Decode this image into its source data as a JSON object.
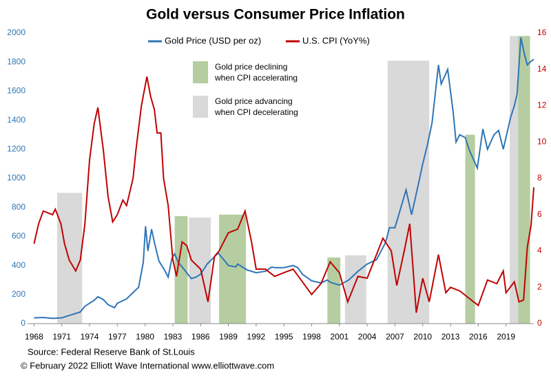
{
  "chart_data": {
    "type": "line",
    "title": "Gold versus Consumer Price Inflation",
    "xlim": [
      1967.3,
      2022
    ],
    "xticks": [
      1968,
      1971,
      1974,
      1977,
      1980,
      1983,
      1986,
      1989,
      1992,
      1995,
      1998,
      2001,
      2004,
      2007,
      2010,
      2013,
      2016,
      2019
    ],
    "ylim": [
      0,
      2000
    ],
    "yticks": [
      0,
      200,
      400,
      600,
      800,
      1000,
      1200,
      1400,
      1600,
      1800,
      2000
    ],
    "y2lim": [
      0,
      16
    ],
    "y2ticks": [
      0,
      2,
      4,
      6,
      8,
      10,
      12,
      14,
      16
    ],
    "bands": [
      {
        "name": [
          "Gold price declining",
          "when CPI accelerating"
        ],
        "color": "#b5cda0",
        "periods": [
          [
            1983.2,
            1984.6,
            740
          ],
          [
            1988.0,
            1990.9,
            750
          ],
          [
            1999.7,
            2001.1,
            455
          ],
          [
            2014.6,
            2015.65,
            1300
          ],
          [
            2020.3,
            2021.6,
            1980
          ]
        ]
      },
      {
        "name": [
          "Gold price advancing",
          "when CPI decelerating"
        ],
        "color": "#d9d9d9",
        "periods": [
          [
            1970.5,
            1973.2,
            900
          ],
          [
            1984.75,
            1987.1,
            730
          ],
          [
            2001.6,
            2003.9,
            470
          ],
          [
            2006.2,
            2010.7,
            1810
          ],
          [
            2019.4,
            2020.3,
            1980
          ]
        ]
      }
    ],
    "series": [
      {
        "name": "Gold Price (USD per oz)",
        "color": "#2e75b6",
        "x": [
          1968,
          1969,
          1970,
          1971,
          1972,
          1973,
          1973.5,
          1974,
          1974.5,
          1974.9,
          1975.5,
          1976,
          1976.7,
          1977,
          1978,
          1978.8,
          1979.3,
          1979.8,
          1980.05,
          1980.3,
          1980.7,
          1981,
          1981.5,
          1982,
          1982.5,
          1982.9,
          1983.2,
          1983.6,
          1984,
          1984.5,
          1985,
          1985.5,
          1986,
          1986.7,
          1987.5,
          1987.9,
          1988.5,
          1989,
          1989.8,
          1990,
          1991,
          1992,
          1993,
          1993.7,
          1994,
          1995,
          1996,
          1996.5,
          1997,
          1998,
          1999,
          1999.7,
          2000,
          2001,
          2002,
          2003,
          2004,
          2005,
          2006,
          2006.4,
          2007,
          2008.2,
          2008.8,
          2009.5,
          2010,
          2010.5,
          2011,
          2011.7,
          2012,
          2012.7,
          2013.3,
          2013.6,
          2014,
          2014.6,
          2015,
          2015.9,
          2016.5,
          2017,
          2017.7,
          2018.2,
          2018.7,
          2019.5,
          2019.9,
          2020.2,
          2020.6,
          2021,
          2021.3,
          2021.6,
          2022
        ],
        "values": [
          40,
          42,
          36,
          40,
          60,
          80,
          120,
          140,
          160,
          185,
          165,
          130,
          110,
          140,
          170,
          220,
          250,
          420,
          670,
          500,
          650,
          560,
          430,
          380,
          320,
          450,
          480,
          420,
          390,
          350,
          310,
          320,
          340,
          410,
          460,
          485,
          440,
          400,
          390,
          410,
          370,
          350,
          360,
          390,
          385,
          385,
          400,
          385,
          340,
          295,
          280,
          300,
          285,
          265,
          300,
          360,
          410,
          440,
          560,
          660,
          660,
          920,
          750,
          950,
          1100,
          1230,
          1380,
          1780,
          1650,
          1750,
          1450,
          1250,
          1300,
          1280,
          1200,
          1070,
          1340,
          1200,
          1300,
          1330,
          1200,
          1420,
          1500,
          1580,
          1970,
          1850,
          1780,
          1800,
          1820
        ]
      },
      {
        "name": "U.S. CPI (YoY%)",
        "color": "#c00000",
        "axis": "y2",
        "x": [
          1968,
          1968.5,
          1969,
          1970,
          1970.3,
          1970.9,
          1971.3,
          1971.8,
          1972.5,
          1973,
          1973.5,
          1974,
          1974.5,
          1974.9,
          1975.5,
          1976,
          1976.5,
          1977,
          1977.6,
          1978,
          1978.7,
          1979,
          1979.6,
          1980.2,
          1980.6,
          1981,
          1981.3,
          1981.7,
          1982,
          1982.5,
          1983,
          1983.4,
          1984,
          1984.5,
          1985,
          1986,
          1986.8,
          1987.5,
          1988,
          1989,
          1990,
          1990.8,
          1991.5,
          1992,
          1993,
          1994,
          1995,
          1996,
          1997,
          1998,
          1999,
          2000,
          2001,
          2001.9,
          2003,
          2004,
          2005.7,
          2006.6,
          2007.2,
          2008,
          2008.6,
          2009.3,
          2010,
          2010.7,
          2011.7,
          2012.5,
          2013,
          2014,
          2015,
          2016,
          2017,
          2018,
          2018.7,
          2019,
          2019.9,
          2020.4,
          2020.9,
          2021.3,
          2021.7,
          2022
        ],
        "values": [
          4.4,
          5.5,
          6.2,
          6.0,
          6.3,
          5.5,
          4.4,
          3.5,
          2.9,
          3.5,
          5.5,
          9.0,
          11.0,
          11.9,
          9.5,
          7.0,
          5.6,
          6.0,
          6.8,
          6.5,
          8.0,
          9.5,
          12,
          13.6,
          12.5,
          11.8,
          10.5,
          10.5,
          8.0,
          6.5,
          3.5,
          2.6,
          4.5,
          4.3,
          3.5,
          3.0,
          1.2,
          3.7,
          4.0,
          5.0,
          5.2,
          6.2,
          4.5,
          3.0,
          3.0,
          2.6,
          2.8,
          3.0,
          2.3,
          1.6,
          2.2,
          3.4,
          2.8,
          1.2,
          2.6,
          2.5,
          4.7,
          4.0,
          2.1,
          4.0,
          5.5,
          0.6,
          2.5,
          1.2,
          3.8,
          1.7,
          2.0,
          1.8,
          1.4,
          1.0,
          2.4,
          2.2,
          2.9,
          1.7,
          2.3,
          1.2,
          1.3,
          4.2,
          5.4,
          7.5
        ]
      }
    ],
    "source": "Source: Federal Reserve Bank of St.Louis",
    "credit": "© February 2022   Elliott Wave International   www.elliottwave.com"
  }
}
